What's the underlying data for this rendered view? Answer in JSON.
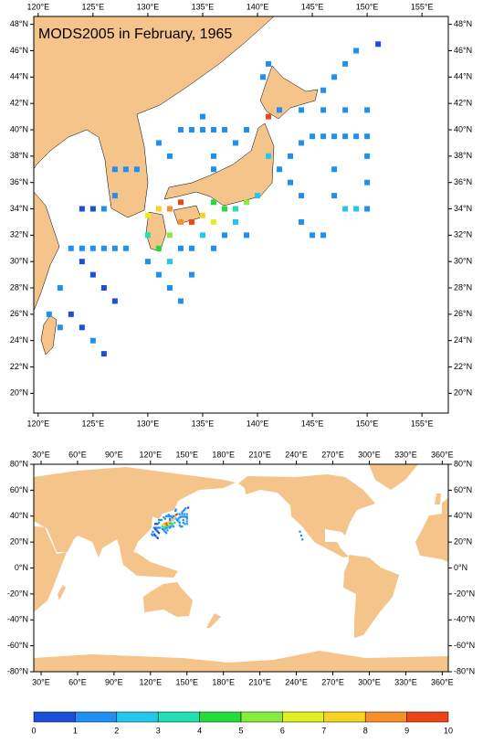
{
  "title": "MODS2005 in February, 1965",
  "maps": [
    {
      "xlim": [
        119.6,
        157.4
      ],
      "ylim": [
        18.5,
        48.6
      ],
      "xticks": [
        {
          "value": 120,
          "label": "120°E"
        },
        {
          "value": 125,
          "label": "125°E"
        },
        {
          "value": 130,
          "label": "130°E"
        },
        {
          "value": 135,
          "label": "135°E"
        },
        {
          "value": 140,
          "label": "140°E"
        },
        {
          "value": 145,
          "label": "145°E"
        },
        {
          "value": 150,
          "label": "150°E"
        },
        {
          "value": 155,
          "label": "155°E"
        }
      ],
      "yticks": [
        {
          "value": 20,
          "label": "20°N"
        },
        {
          "value": 22,
          "label": "22°N"
        },
        {
          "value": 24,
          "label": "24°N"
        },
        {
          "value": 26,
          "label": "26°N"
        },
        {
          "value": 28,
          "label": "28°N"
        },
        {
          "value": 30,
          "label": "30°N"
        },
        {
          "value": 32,
          "label": "32°N"
        },
        {
          "value": 34,
          "label": "34°N"
        },
        {
          "value": 36,
          "label": "36°N"
        },
        {
          "value": 38,
          "label": "38°N"
        },
        {
          "value": 40,
          "label": "40°N"
        },
        {
          "value": 42,
          "label": "42°N"
        },
        {
          "value": 44,
          "label": "44°N"
        },
        {
          "value": 46,
          "label": "46°N"
        },
        {
          "value": 48,
          "label": "48°N"
        }
      ]
    },
    {
      "xlim": [
        24,
        365
      ],
      "ylim": [
        -80,
        80
      ],
      "xticks": [
        {
          "value": 30,
          "label": "30°E"
        },
        {
          "value": 60,
          "label": "60°E"
        },
        {
          "value": 90,
          "label": "90°E"
        },
        {
          "value": 120,
          "label": "120°E"
        },
        {
          "value": 150,
          "label": "150°E"
        },
        {
          "value": 180,
          "label": "180°E"
        },
        {
          "value": 210,
          "label": "210°E"
        },
        {
          "value": 240,
          "label": "240°E"
        },
        {
          "value": 270,
          "label": "270°E"
        },
        {
          "value": 300,
          "label": "300°E"
        },
        {
          "value": 330,
          "label": "330°E"
        },
        {
          "value": 360,
          "label": "360°E"
        }
      ],
      "yticks": [
        {
          "value": -80,
          "label": "-80°N"
        },
        {
          "value": -60,
          "label": "-60°N"
        },
        {
          "value": -40,
          "label": "-40°N"
        },
        {
          "value": -20,
          "label": "-20°N"
        },
        {
          "value": 0,
          "label": "0°N"
        },
        {
          "value": 20,
          "label": "20°N"
        },
        {
          "value": 40,
          "label": "40°N"
        },
        {
          "value": 60,
          "label": "60°N"
        },
        {
          "value": 80,
          "label": "80°N"
        }
      ]
    }
  ],
  "points": {
    "lon": [
      133,
      134,
      135,
      136,
      137,
      131,
      132,
      136,
      136,
      138,
      139,
      135,
      127,
      128,
      129,
      127,
      126,
      125,
      124,
      123,
      124,
      125,
      126,
      127,
      128,
      124,
      125,
      126,
      127,
      122,
      123,
      124,
      125,
      126,
      121,
      122,
      130,
      131,
      132,
      133,
      134,
      135,
      136,
      137,
      138,
      139,
      140,
      132,
      133,
      134,
      135,
      136,
      137,
      138,
      139,
      130,
      131,
      132,
      133,
      134,
      130,
      131,
      133,
      132,
      136,
      141,
      142,
      143,
      144,
      145,
      146,
      147,
      148,
      149,
      150,
      150,
      150,
      150,
      149,
      148,
      147,
      147,
      144,
      144,
      145,
      146,
      143,
      142,
      144,
      146,
      148,
      150,
      141,
      146,
      147,
      148,
      149,
      151,
      140.5,
      141,
      243,
      244,
      245
    ],
    "lat": [
      40,
      40,
      40,
      40,
      40,
      39,
      38,
      38,
      37,
      39,
      40,
      41,
      37,
      37,
      37,
      35,
      34,
      34,
      34,
      31,
      31,
      31,
      31,
      31,
      31,
      30,
      29,
      28,
      27,
      28,
      26,
      25,
      24,
      23,
      26,
      25,
      32,
      31,
      32,
      33,
      33,
      33.5,
      33,
      34,
      34,
      34.5,
      35,
      30,
      31,
      31,
      32,
      31,
      32,
      33,
      32,
      30,
      29,
      28,
      27,
      29,
      33.5,
      34,
      34.5,
      34,
      34.5,
      38,
      37,
      38,
      39,
      39.5,
      39.5,
      39.5,
      39.5,
      39.5,
      39.5,
      38,
      36,
      34,
      34,
      34,
      35,
      37,
      35,
      33,
      32,
      32,
      36,
      41.5,
      41.5,
      41.5,
      41.5,
      41.5,
      41,
      43,
      44,
      45,
      46,
      46.5,
      44,
      45,
      28,
      25,
      22
    ],
    "values": [
      1.5,
      1.5,
      1.5,
      1.5,
      1.5,
      1.5,
      1.5,
      1.5,
      1.5,
      1.5,
      1.5,
      1.5,
      1.5,
      1.5,
      1.5,
      1.5,
      1.5,
      0.5,
      0.5,
      1.5,
      1.5,
      1.5,
      1.5,
      1.5,
      1.5,
      0.5,
      0.5,
      0.5,
      0.5,
      1.5,
      0.5,
      0.5,
      1.5,
      0.5,
      1.5,
      1.5,
      3.5,
      4.5,
      5.5,
      8.5,
      9.5,
      7.5,
      6.5,
      4.5,
      3.5,
      5.5,
      2.5,
      2.5,
      1.5,
      1.5,
      2.5,
      1.5,
      1.5,
      2.5,
      1.5,
      1.5,
      1.5,
      1.5,
      1.5,
      1.5,
      6.5,
      7.5,
      9.5,
      8.5,
      4.5,
      2.5,
      1.5,
      1.5,
      1.5,
      1.5,
      1.5,
      1.5,
      1.5,
      1.5,
      1.5,
      1.5,
      1.5,
      1.5,
      2.5,
      2.5,
      1.5,
      1.5,
      1.5,
      1.5,
      1.5,
      1.5,
      1.5,
      1.5,
      1.5,
      1.5,
      1.5,
      1.5,
      9.5,
      1.5,
      1.5,
      1.5,
      1.5,
      0.5,
      1.5,
      1.5,
      1.5,
      1.5,
      1.5
    ]
  },
  "colorbar": {
    "ticks": [
      0,
      1,
      2,
      3,
      4,
      5,
      6,
      7,
      8,
      9,
      10
    ],
    "colors": [
      "#1c4fd8",
      "#1f8ff0",
      "#22c8ec",
      "#20e0b4",
      "#22dc3c",
      "#86ee3a",
      "#e2f020",
      "#f8d422",
      "#f8902a",
      "#ec4414"
    ]
  }
}
